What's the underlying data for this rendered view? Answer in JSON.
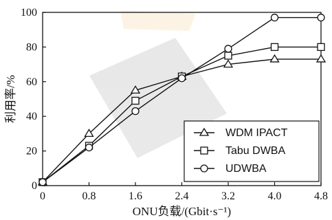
{
  "chart_data": {
    "type": "line",
    "x": [
      0,
      0.8,
      1.6,
      2.4,
      3.2,
      4.0,
      4.8
    ],
    "xticks": [
      "0",
      "0.8",
      "1.6",
      "2.4",
      "3.2",
      "4.0",
      "4.8"
    ],
    "yticks": [
      "0",
      "20",
      "40",
      "60",
      "80",
      "100"
    ],
    "xlim": [
      0,
      4.8
    ],
    "ylim": [
      0,
      100
    ],
    "xlabel": "ONU负载/(Gbit·s⁻¹)",
    "ylabel": "利用率/%",
    "grid": false,
    "legend_position": "bottom-right",
    "series": [
      {
        "name": "WDM IPACT",
        "marker": "triangle",
        "values": [
          2,
          30,
          55,
          63,
          70,
          73,
          73
        ]
      },
      {
        "name": "Tabu DWBA",
        "marker": "square",
        "values": [
          2,
          23,
          49,
          63,
          75,
          80,
          80
        ]
      },
      {
        "name": "UDWBA",
        "marker": "circle",
        "values": [
          2,
          22,
          43,
          62,
          79,
          97,
          97
        ]
      }
    ],
    "colors": {
      "line": "#111111",
      "marker_fill": "#ffffff"
    }
  }
}
